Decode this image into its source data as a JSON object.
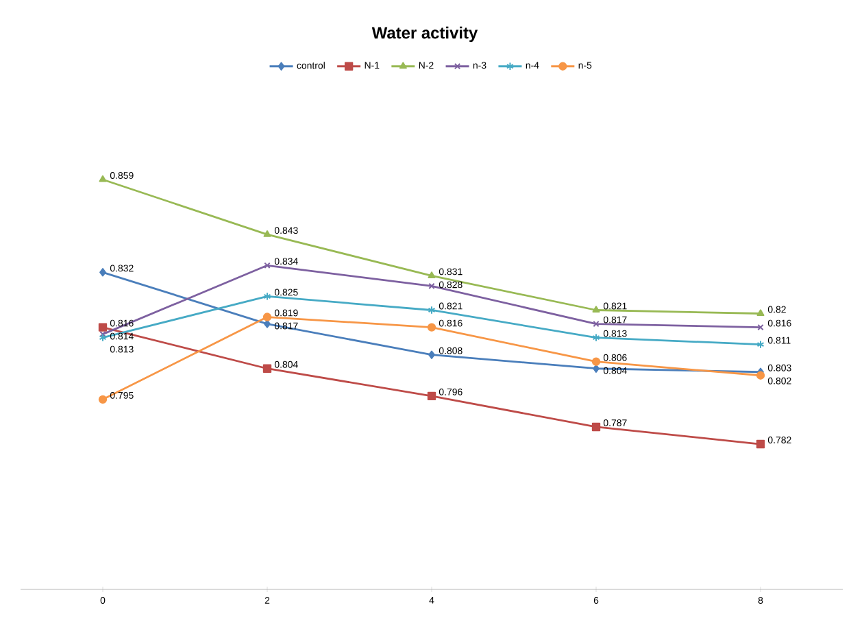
{
  "chart_data": {
    "type": "line",
    "title": "Water activity",
    "categories": [
      "0",
      "2",
      "4",
      "6",
      "8"
    ],
    "tick_labels": "x",
    "data_labels": true,
    "legend": "top",
    "series": [
      {
        "name": "control",
        "color": "#4a7ebb",
        "marker": "diamond",
        "values": [
          0.832,
          0.817,
          0.808,
          0.804,
          0.803
        ]
      },
      {
        "name": "N-1",
        "color": "#be4b48",
        "marker": "square",
        "values": [
          0.816,
          0.804,
          0.796,
          0.787,
          0.782
        ]
      },
      {
        "name": "N-2",
        "color": "#98b954",
        "marker": "triangle",
        "values": [
          0.859,
          0.843,
          0.831,
          0.821,
          0.82
        ]
      },
      {
        "name": "n-3",
        "color": "#7d60a0",
        "marker": "cross",
        "values": [
          0.814,
          0.834,
          0.828,
          0.817,
          0.816
        ]
      },
      {
        "name": "n-4",
        "color": "#46aac5",
        "marker": "cross",
        "values": [
          0.813,
          0.825,
          0.821,
          0.813,
          0.811
        ]
      },
      {
        "name": "n-5",
        "color": "#f79646",
        "marker": "circle",
        "values": [
          0.795,
          0.819,
          0.816,
          0.806,
          0.802
        ]
      }
    ]
  }
}
